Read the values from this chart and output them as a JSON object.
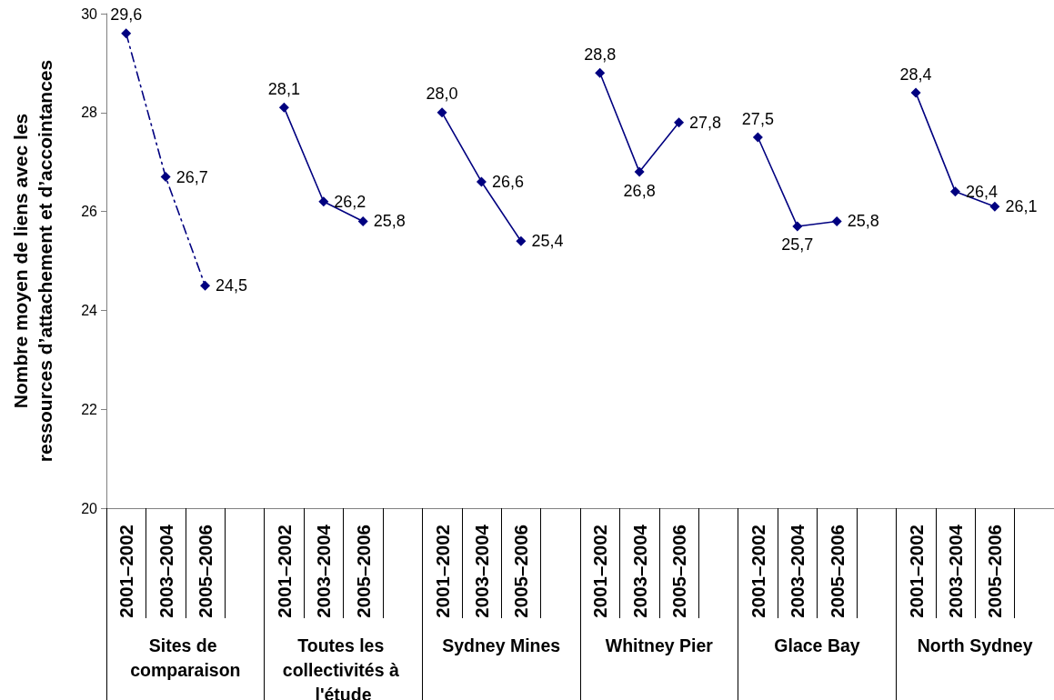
{
  "chart_data": {
    "type": "line",
    "ylabel": "Nombre moyen de liens avec les ressources d’attachement et d’accointances",
    "categories": [
      "2001–2002",
      "2003–2004",
      "2005–2006",
      null,
      "2001–2002",
      "2003–2004",
      "2005–2006",
      null,
      "2001–2002",
      "2003–2004",
      "2005–2006",
      null,
      "2001–2002",
      "2003–2004",
      "2005–2006",
      null,
      "2001–2002",
      "2003–2004",
      "2005–2006",
      null,
      "2001–2002",
      "2003–2004",
      "2005–2006",
      null
    ],
    "annotations": [
      "Sites de comparaison",
      "Toutes les collectivités à l'étude",
      "Sydney Mines",
      "Whitney Pier",
      "Glace Bay",
      "North Sydney"
    ],
    "series": [
      {
        "color": "#000080",
        "line_style": "dashdot",
        "values": [
          29.6,
          26.7,
          24.5,
          null,
          null,
          null,
          null,
          null,
          null,
          null,
          null,
          null,
          null,
          null,
          null,
          null,
          null,
          null,
          null,
          null,
          null,
          null,
          null,
          null
        ],
        "value_labels": [
          "29,6",
          "26,7",
          "24,5",
          null,
          null,
          null,
          null,
          null,
          null,
          null,
          null,
          null,
          null,
          null,
          null,
          null,
          null,
          null,
          null,
          null,
          null,
          null,
          null,
          null
        ]
      },
      {
        "color": "#000080",
        "values": [
          null,
          null,
          null,
          null,
          28.1,
          26.2,
          25.8,
          null,
          null,
          null,
          null,
          null,
          null,
          null,
          null,
          null,
          null,
          null,
          null,
          null,
          null,
          null,
          null,
          null
        ],
        "value_labels": [
          null,
          null,
          null,
          null,
          "28,1",
          "26,2",
          "25,8",
          null,
          null,
          null,
          null,
          null,
          null,
          null,
          null,
          null,
          null,
          null,
          null,
          null,
          null,
          null,
          null,
          null
        ]
      },
      {
        "color": "#000080",
        "values": [
          null,
          null,
          null,
          null,
          null,
          null,
          null,
          null,
          28.0,
          26.6,
          25.4,
          null,
          null,
          null,
          null,
          null,
          null,
          null,
          null,
          null,
          null,
          null,
          null,
          null
        ],
        "value_labels": [
          null,
          null,
          null,
          null,
          null,
          null,
          null,
          null,
          "28,0",
          "26,6",
          "25,4",
          null,
          null,
          null,
          null,
          null,
          null,
          null,
          null,
          null,
          null,
          null,
          null,
          null
        ]
      },
      {
        "color": "#000080",
        "values": [
          null,
          null,
          null,
          null,
          null,
          null,
          null,
          null,
          null,
          null,
          null,
          null,
          28.8,
          26.8,
          27.8,
          null,
          null,
          null,
          null,
          null,
          null,
          null,
          null,
          null
        ],
        "value_labels": [
          null,
          null,
          null,
          null,
          null,
          null,
          null,
          null,
          null,
          null,
          null,
          null,
          "28,8",
          "26,8",
          "27,8",
          null,
          null,
          null,
          null,
          null,
          null,
          null,
          null,
          null
        ]
      },
      {
        "color": "#000080",
        "values": [
          null,
          null,
          null,
          null,
          null,
          null,
          null,
          null,
          null,
          null,
          null,
          null,
          null,
          null,
          null,
          null,
          27.5,
          25.7,
          25.8,
          null,
          null,
          null,
          null,
          null
        ],
        "value_labels": [
          null,
          null,
          null,
          null,
          null,
          null,
          null,
          null,
          null,
          null,
          null,
          null,
          null,
          null,
          null,
          null,
          "27,5",
          "25,7",
          "25,8",
          null,
          null,
          null,
          null,
          null
        ]
      },
      {
        "color": "#000080",
        "values": [
          null,
          null,
          null,
          null,
          null,
          null,
          null,
          null,
          null,
          null,
          null,
          null,
          null,
          null,
          null,
          null,
          null,
          null,
          null,
          null,
          28.4,
          26.4,
          26.1,
          null
        ],
        "value_labels": [
          null,
          null,
          null,
          null,
          null,
          null,
          null,
          null,
          null,
          null,
          null,
          null,
          null,
          null,
          null,
          null,
          null,
          null,
          null,
          null,
          "28,4",
          "26,4",
          "26,1",
          null
        ]
      }
    ],
    "ylim": [
      20,
      30
    ],
    "yticks": [
      20,
      22,
      24,
      26,
      28,
      30
    ],
    "marker": "diamond",
    "line_style": "solid"
  }
}
